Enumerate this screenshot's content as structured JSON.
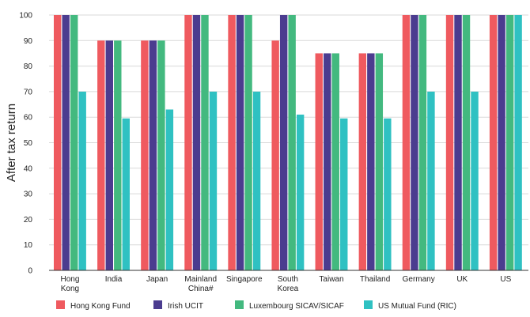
{
  "chart_data": {
    "type": "bar",
    "title": "",
    "xlabel": "",
    "ylabel": "After tax return",
    "ylim": [
      0,
      100
    ],
    "yticks": [
      0,
      10,
      20,
      30,
      40,
      50,
      60,
      70,
      80,
      90,
      100
    ],
    "grid": true,
    "legend_position": "bottom",
    "categories": [
      [
        "Hong",
        "Kong"
      ],
      [
        "India"
      ],
      [
        "Japan"
      ],
      [
        "Mainland",
        "China#"
      ],
      [
        "Singapore"
      ],
      [
        "South",
        "Korea"
      ],
      [
        "Taiwan"
      ],
      [
        "Thailand"
      ],
      [
        "Germany"
      ],
      [
        "UK"
      ],
      [
        "US"
      ]
    ],
    "series": [
      {
        "name": "Hong Kong Fund",
        "color": "#ef5a5f",
        "values": [
          100,
          90,
          90,
          100,
          100,
          90,
          85,
          85,
          100,
          100,
          100
        ]
      },
      {
        "name": "Irish UCIT",
        "color": "#4b3c8f",
        "values": [
          100,
          90,
          90,
          100,
          100,
          100,
          85,
          85,
          100,
          100,
          100
        ]
      },
      {
        "name": "Luxembourg SICAV/SICAF",
        "color": "#43b97f",
        "values": [
          100,
          90,
          90,
          100,
          100,
          100,
          85,
          85,
          100,
          100,
          100
        ]
      },
      {
        "name": "US Mutual Fund (RIC)",
        "color": "#2fc1c2",
        "values": [
          70,
          59.5,
          63,
          70,
          70,
          61,
          59.5,
          59.5,
          70,
          70,
          100
        ]
      }
    ]
  }
}
